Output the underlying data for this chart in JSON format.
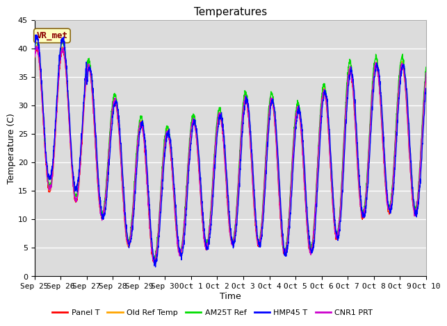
{
  "title": "Temperatures",
  "xlabel": "Time",
  "ylabel": "Temperature (C)",
  "ylim": [
    0,
    45
  ],
  "annotation_text": "VR_met",
  "series": [
    {
      "label": "Panel T",
      "color": "#ff0000"
    },
    {
      "label": "Old Ref Temp",
      "color": "#ffa500"
    },
    {
      "label": "AM25T Ref",
      "color": "#00dd00"
    },
    {
      "label": "HMP45 T",
      "color": "#0000ff"
    },
    {
      "label": "CNR1 PRT",
      "color": "#cc00cc"
    }
  ],
  "x_tick_labels": [
    "Sep 25",
    "Sep 26",
    "Sep 27",
    "Sep 28",
    "Sep 29",
    "Sep 30",
    "Oct 1",
    "Oct 2",
    "Oct 3",
    "Oct 4",
    "Oct 5",
    "Oct 6",
    "Oct 7",
    "Oct 8",
    "Oct 9",
    "Oct 10"
  ],
  "n_days": 15,
  "amplitude_env": [
    40,
    40,
    37,
    31,
    27,
    25,
    27,
    28,
    31,
    31,
    29,
    32,
    36,
    37,
    37
  ],
  "min_env": [
    15,
    15,
    12,
    9,
    3,
    2,
    5,
    5,
    6,
    5,
    3,
    5,
    8,
    12,
    11
  ],
  "title_fontsize": 11,
  "label_fontsize": 9,
  "tick_fontsize": 8,
  "legend_fontsize": 8
}
